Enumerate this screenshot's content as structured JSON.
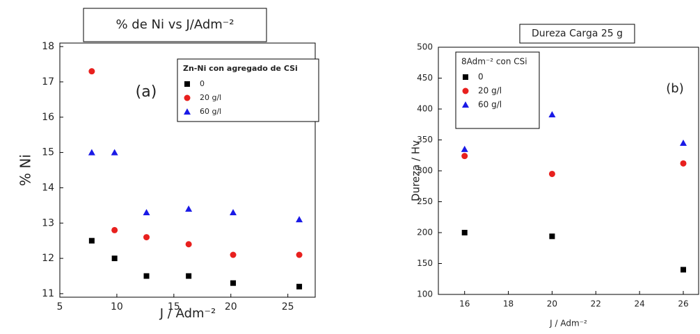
{
  "chart_data": [
    {
      "type": "scatter",
      "title": "% de Ni vs  J/Adm⁻²",
      "annotation": "(a)",
      "x_label": "J / Adm⁻²",
      "y_label": "% Ni",
      "legend_title": "Zn-Ni con agregado de CSi",
      "x": [
        7.8,
        9.8,
        12.6,
        16.3,
        20.2,
        26.0
      ],
      "series": [
        {
          "name": "0",
          "color": "#000000",
          "marker": "square",
          "values": [
            12.5,
            12.0,
            11.5,
            11.5,
            11.3,
            11.2
          ]
        },
        {
          "name": "20 g/l",
          "color": "#e8201e",
          "marker": "circle",
          "values": [
            17.3,
            12.8,
            12.6,
            12.4,
            12.1,
            12.1
          ]
        },
        {
          "name": "60 g/l",
          "color": "#1a1ae6",
          "marker": "triangle",
          "values": [
            15.0,
            15.0,
            13.3,
            13.4,
            13.3,
            13.1
          ]
        }
      ],
      "xlim": [
        5,
        27.4
      ],
      "xticks": [
        5,
        10,
        15,
        20,
        25
      ],
      "ylim": [
        10.9,
        18.1
      ],
      "yticks": [
        11,
        12,
        13,
        14,
        15,
        16,
        17,
        18
      ]
    },
    {
      "type": "scatter",
      "title": "Dureza Carga 25 g",
      "annotation": "(b)",
      "x_label": "J / Adm⁻²",
      "y_label": "Dureza / Hv",
      "legend_title": "8Adm⁻² con CSi",
      "x": [
        16,
        20,
        26
      ],
      "series": [
        {
          "name": "0",
          "color": "#000000",
          "marker": "square",
          "values": [
            200,
            194,
            140
          ]
        },
        {
          "name": "20 g/l",
          "color": "#e8201e",
          "marker": "circle",
          "values": [
            324,
            295,
            312
          ]
        },
        {
          "name": "60 g/l",
          "color": "#1a1ae6",
          "marker": "triangle",
          "values": [
            335,
            391,
            345
          ]
        }
      ],
      "xlim": [
        14.8,
        26.7
      ],
      "xticks": [
        16,
        18,
        20,
        22,
        24,
        26
      ],
      "ylim": [
        100,
        500
      ],
      "yticks": [
        100,
        150,
        200,
        250,
        300,
        350,
        400,
        450,
        500
      ]
    }
  ]
}
